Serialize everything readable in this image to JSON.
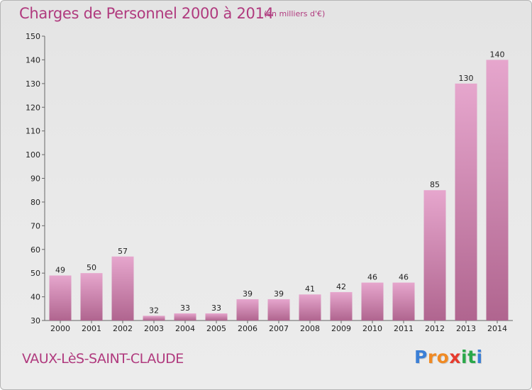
{
  "title": "Charges de Personnel 2000 à 2014",
  "subtitle": "(en milliers d'€)",
  "commune": "VAUX-LèS-SAINT-CLAUDE",
  "brand": {
    "letters": [
      "P",
      "r",
      "o",
      "x",
      "i",
      "t",
      "i"
    ],
    "colors": [
      "#3b7fd6",
      "#f08a24",
      "#f08a24",
      "#e63b2e",
      "#2aa84a",
      "#2aa84a",
      "#3b7fd6"
    ]
  },
  "colors": {
    "accent": "#b03a7e",
    "bar_top": "#e6a6cd",
    "bar_bottom": "#b0658f"
  },
  "chart_data": {
    "type": "bar",
    "categories": [
      "2000",
      "2001",
      "2002",
      "2003",
      "2004",
      "2005",
      "2006",
      "2007",
      "2008",
      "2009",
      "2010",
      "2011",
      "2012",
      "2013",
      "2014"
    ],
    "values": [
      49,
      50,
      57,
      32,
      33,
      33,
      39,
      39,
      41,
      42,
      46,
      46,
      85,
      130,
      140
    ],
    "ylim": [
      30,
      150
    ],
    "yticks": [
      30,
      40,
      50,
      60,
      70,
      80,
      90,
      100,
      110,
      120,
      130,
      140,
      150
    ],
    "grid": false,
    "data_labels": true
  }
}
